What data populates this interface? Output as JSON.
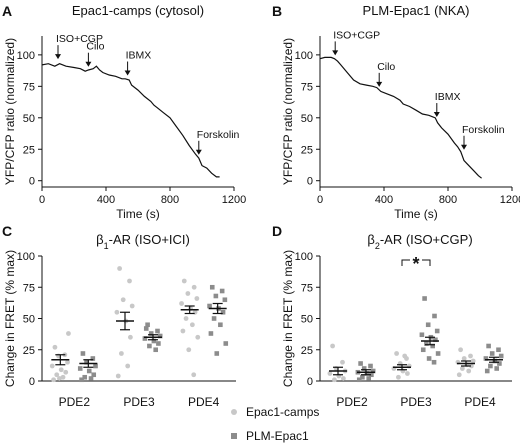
{
  "colors": {
    "axis": "#111111",
    "trace": "#111111",
    "camps_dot": "#c8c8c8",
    "plm_dot": "#8c8c8c",
    "mean": "#111111"
  },
  "legend": {
    "camps": "Epac1-camps",
    "plm": "PLM-Epac1",
    "placement": "bottom-center"
  },
  "chart_data": [
    {
      "panel": "A",
      "type": "line",
      "title": "Epac1-camps (cytosol)",
      "xlabel": "Time (s)",
      "ylabel": "YFP/CFP ratio (normalized)",
      "xlim": [
        0,
        1200
      ],
      "ylim": [
        -5,
        115
      ],
      "xticks": [
        0,
        400,
        800,
        1200
      ],
      "yticks": [
        0,
        25,
        50,
        75,
        100
      ],
      "points": [
        [
          0,
          92
        ],
        [
          40,
          93
        ],
        [
          80,
          91
        ],
        [
          110,
          93
        ],
        [
          150,
          91
        ],
        [
          200,
          90
        ],
        [
          240,
          89
        ],
        [
          270,
          87
        ],
        [
          290,
          88
        ],
        [
          320,
          89
        ],
        [
          340,
          91
        ],
        [
          360,
          88
        ],
        [
          380,
          86
        ],
        [
          420,
          84
        ],
        [
          460,
          83
        ],
        [
          500,
          81
        ],
        [
          520,
          81
        ],
        [
          545,
          80
        ],
        [
          560,
          76
        ],
        [
          580,
          74
        ],
        [
          600,
          72
        ],
        [
          640,
          67
        ],
        [
          680,
          63
        ],
        [
          700,
          60
        ],
        [
          720,
          58
        ],
        [
          760,
          54
        ],
        [
          800,
          50
        ],
        [
          840,
          43
        ],
        [
          880,
          36
        ],
        [
          920,
          28
        ],
        [
          960,
          21
        ],
        [
          980,
          18
        ],
        [
          1000,
          12
        ],
        [
          1030,
          10
        ],
        [
          1060,
          6
        ],
        [
          1090,
          3
        ],
        [
          1110,
          3
        ]
      ],
      "annotations": [
        {
          "label": "ISO+CGP",
          "x": 100,
          "y": 95
        },
        {
          "label": "Cilo",
          "x": 290,
          "y": 89
        },
        {
          "label": "IBMX",
          "x": 535,
          "y": 82
        },
        {
          "label": "Forskolin",
          "x": 980,
          "y": 19
        }
      ]
    },
    {
      "panel": "B",
      "type": "line",
      "title": "PLM-Epac1 (NKA)",
      "xlabel": "Time (s)",
      "ylabel": "YFP/CFP ratio (normalized)",
      "xlim": [
        0,
        1200
      ],
      "ylim": [
        -5,
        115
      ],
      "xticks": [
        0,
        400,
        800,
        1200
      ],
      "yticks": [
        0,
        25,
        50,
        75,
        100
      ],
      "points": [
        [
          0,
          97
        ],
        [
          30,
          98
        ],
        [
          70,
          98
        ],
        [
          90,
          97
        ],
        [
          110,
          95
        ],
        [
          130,
          92
        ],
        [
          170,
          86
        ],
        [
          210,
          80
        ],
        [
          250,
          77
        ],
        [
          290,
          76
        ],
        [
          330,
          75
        ],
        [
          355,
          74
        ],
        [
          380,
          71
        ],
        [
          420,
          69
        ],
        [
          460,
          67
        ],
        [
          500,
          64
        ],
        [
          520,
          61
        ],
        [
          560,
          59
        ],
        [
          600,
          56
        ],
        [
          640,
          53
        ],
        [
          680,
          52
        ],
        [
          720,
          50
        ],
        [
          735,
          46
        ],
        [
          760,
          42
        ],
        [
          800,
          37
        ],
        [
          840,
          30
        ],
        [
          860,
          27
        ],
        [
          880,
          23
        ],
        [
          900,
          16
        ],
        [
          930,
          12
        ],
        [
          960,
          8
        ],
        [
          990,
          4
        ],
        [
          1010,
          2
        ]
      ],
      "annotations": [
        {
          "label": "ISO+CGP",
          "x": 95,
          "y": 98
        },
        {
          "label": "Cilo",
          "x": 370,
          "y": 73
        },
        {
          "label": "IBMX",
          "x": 730,
          "y": 49
        },
        {
          "label": "Forskolin",
          "x": 900,
          "y": 23
        }
      ]
    },
    {
      "panel": "C",
      "type": "scatter",
      "title_prefix": "β",
      "title_sub": "1",
      "title_rest": "-AR (ISO+ICI)",
      "ylabel": "Change in FRET (% max)",
      "ylim": [
        0,
        100
      ],
      "yticks": [
        0,
        25,
        50,
        75,
        100
      ],
      "categories": [
        "PDE2",
        "PDE3",
        "PDE4"
      ],
      "series": [
        {
          "name": "Epac1-camps",
          "means": [
            17,
            48,
            57
          ],
          "sem": [
            4,
            7,
            3
          ],
          "points": [
            [
              27,
              21,
              20,
              15,
              12,
              9,
              7,
              5,
              3,
              1,
              38,
              2
            ],
            [
              90,
              80,
              65,
              60,
              55,
              48,
              35,
              22,
              12,
              4
            ],
            [
              80,
              75,
              70,
              66,
              62,
              58,
              55,
              50,
              45,
              40,
              35,
              25,
              5
            ]
          ]
        },
        {
          "name": "PLM-Epac1",
          "means": [
            14,
            35,
            58
          ],
          "sem": [
            3,
            2,
            4
          ],
          "points": [
            [
              22,
              18,
              15,
              12,
              10,
              8,
              5,
              3,
              2,
              1
            ],
            [
              45,
              40,
              38,
              36,
              34,
              32,
              30,
              28,
              25,
              42
            ],
            [
              75,
              72,
              68,
              65,
              60,
              58,
              55,
              50,
              45,
              38,
              30,
              22
            ]
          ]
        }
      ]
    },
    {
      "panel": "D",
      "type": "scatter",
      "title_prefix": "β",
      "title_sub": "2",
      "title_rest": "-AR (ISO+CGP)",
      "ylabel": "Change in FRET (% max)",
      "ylim": [
        0,
        100
      ],
      "yticks": [
        0,
        25,
        50,
        75,
        100
      ],
      "categories": [
        "PDE2",
        "PDE3",
        "PDE4"
      ],
      "significance": {
        "label": "*",
        "between": "PDE3"
      },
      "series": [
        {
          "name": "Epac1-camps",
          "means": [
            8,
            11,
            14
          ],
          "sem": [
            3,
            2,
            2
          ],
          "points": [
            [
              28,
              15,
              10,
              8,
              6,
              4,
              2,
              1
            ],
            [
              22,
              18,
              14,
              12,
              10,
              8,
              6,
              3,
              20
            ],
            [
              25,
              20,
              18,
              16,
              15,
              13,
              12,
              10,
              8,
              5
            ]
          ]
        },
        {
          "name": "PLM-Epac1",
          "means": [
            7,
            32,
            17
          ],
          "sem": [
            2,
            3,
            2
          ],
          "points": [
            [
              14,
              12,
              10,
              8,
              7,
              6,
              5,
              3,
              2,
              1
            ],
            [
              66,
              52,
              45,
              40,
              37,
              35,
              33,
              30,
              28,
              25,
              22,
              18,
              15
            ],
            [
              28,
              25,
              22,
              20,
              18,
              16,
              14,
              12,
              10,
              8
            ]
          ]
        }
      ]
    }
  ]
}
